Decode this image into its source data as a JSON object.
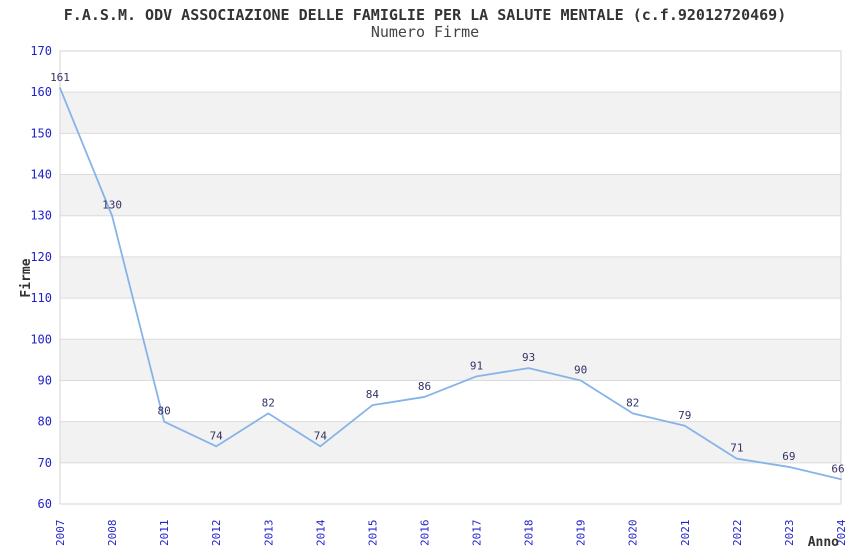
{
  "chart_data": {
    "type": "line",
    "title": "F.A.S.M. ODV ASSOCIAZIONE DELLE FAMIGLIE PER LA SALUTE MENTALE (c.f.92012720469)",
    "subtitle": "Numero Firme",
    "xlabel": "Anno",
    "ylabel": "Firme",
    "x": [
      "2007",
      "2008",
      "2011",
      "2012",
      "2013",
      "2014",
      "2015",
      "2016",
      "2017",
      "2018",
      "2019",
      "2020",
      "2021",
      "2022",
      "2023",
      "2024"
    ],
    "values": [
      161,
      130,
      80,
      74,
      82,
      74,
      84,
      86,
      91,
      93,
      90,
      82,
      79,
      71,
      69,
      66
    ],
    "ylim": [
      60,
      170
    ],
    "ytick_step": 10,
    "grid": "horizontal-bands",
    "legend": "none",
    "colors": {
      "line": "#86b4e8",
      "band": "#f2f2f2",
      "grid": "#dcdcdc",
      "border": "#d4d4d4",
      "tick_label": "#2222cc",
      "data_label": "#333366",
      "text": "#333333"
    }
  }
}
